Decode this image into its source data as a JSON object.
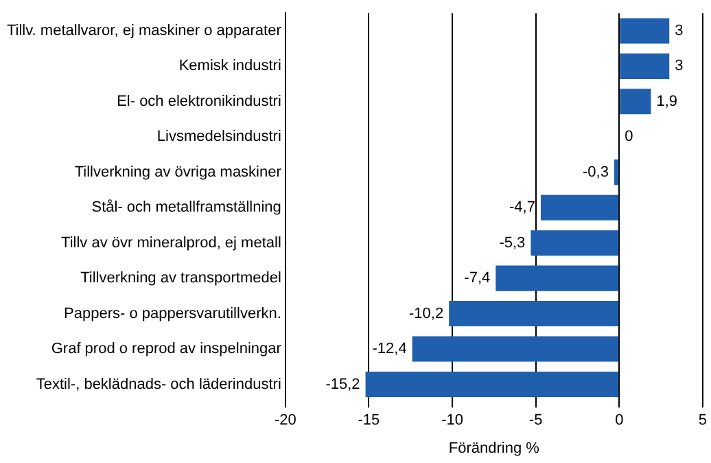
{
  "chart_data": {
    "type": "bar",
    "orientation": "horizontal",
    "xlabel": "Förändring %",
    "categories": [
      "Tillv. metallvaror, ej maskiner o apparater",
      "Kemisk industri",
      "El- och elektronikindustri",
      "Livsmedelsindustri",
      "Tillverkning av övriga maskiner",
      "Stål- och metallframställning",
      "Tillv av övr mineralprod, ej metall",
      "Tillverkning av transportmedel",
      "Pappers- o pappersvarutillverkn.",
      "Graf prod o reprod av inspelningar",
      "Textil-, beklädnads- och läderindustri"
    ],
    "values": [
      3,
      3,
      1.9,
      0,
      -0.3,
      -4.7,
      -5.3,
      -7.4,
      -10.2,
      -12.4,
      -15.2
    ],
    "value_labels": [
      "3",
      "3",
      "1,9",
      "0",
      "-0,3",
      "-4,7",
      "-5,3",
      "-7,4",
      "-10,2",
      "-12,4",
      "-15,2"
    ],
    "color": "#1f5fae",
    "xlim": [
      -20,
      5
    ],
    "xticks": [
      -20,
      -15,
      -10,
      -5,
      0,
      5
    ],
    "grid": "x",
    "legend": false
  }
}
